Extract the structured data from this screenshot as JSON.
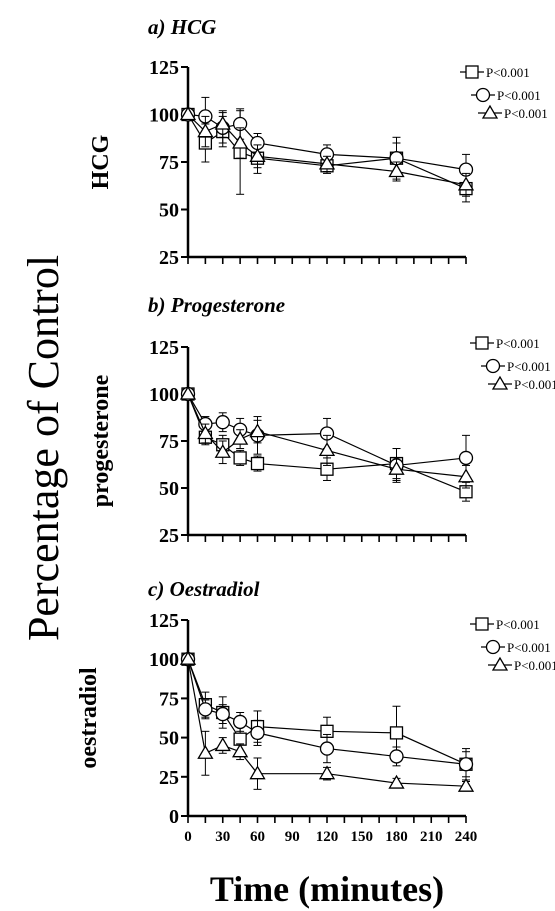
{
  "figure": {
    "shared_ylabel": "Percentage of Control",
    "shared_xlabel": "Time (minutes)"
  },
  "chart_data": [
    {
      "type": "line",
      "title": "a) HCG",
      "ylabel": "HCG",
      "xlabel": "",
      "ylim": [
        25,
        125
      ],
      "xlim": [
        0,
        240
      ],
      "yticks": [
        25,
        50,
        75,
        100,
        125
      ],
      "xticks": [
        0,
        15,
        30,
        45,
        60,
        75,
        90,
        105,
        120,
        135,
        150,
        165,
        180,
        195,
        210,
        225,
        240
      ],
      "show_xtick_labels": false,
      "legend_position": "top-right",
      "grid": false,
      "series": [
        {
          "name": "P<0.001",
          "marker": "square",
          "x": [
            0,
            15,
            30,
            45,
            60,
            120,
            180,
            240
          ],
          "y": [
            100,
            85,
            91,
            80,
            77,
            73,
            77,
            61
          ],
          "err": [
            0,
            10,
            8,
            22,
            8,
            4,
            11,
            7
          ]
        },
        {
          "name": "P<0.001",
          "marker": "circle",
          "x": [
            0,
            15,
            30,
            45,
            60,
            120,
            180,
            240
          ],
          "y": [
            100,
            99,
            93,
            95,
            85,
            79,
            77,
            71
          ],
          "err": [
            0,
            10,
            8,
            8,
            5,
            5,
            8,
            8
          ]
        },
        {
          "name": "P<0.001",
          "marker": "triangle",
          "x": [
            0,
            15,
            30,
            45,
            60,
            120,
            180,
            240
          ],
          "y": [
            100,
            91,
            95,
            85,
            78,
            74,
            70,
            63
          ],
          "err": [
            0,
            8,
            7,
            8,
            6,
            4,
            5,
            6
          ]
        }
      ]
    },
    {
      "type": "line",
      "title": "b) Progesterone",
      "ylabel": "progesterone",
      "xlabel": "",
      "ylim": [
        25,
        125
      ],
      "xlim": [
        0,
        240
      ],
      "yticks": [
        25,
        50,
        75,
        100,
        125
      ],
      "xticks": [
        0,
        15,
        30,
        45,
        60,
        75,
        90,
        105,
        120,
        135,
        150,
        165,
        180,
        195,
        210,
        225,
        240
      ],
      "show_xtick_labels": false,
      "legend_position": "top-right",
      "grid": false,
      "series": [
        {
          "name": "P<0.001",
          "marker": "square",
          "x": [
            0,
            15,
            30,
            45,
            60,
            120,
            180,
            240
          ],
          "y": [
            100,
            77,
            73,
            66,
            63,
            60,
            63,
            48
          ],
          "err": [
            0,
            4,
            5,
            4,
            4,
            6,
            8,
            5
          ]
        },
        {
          "name": "P<0.001",
          "marker": "circle",
          "x": [
            0,
            15,
            30,
            45,
            60,
            120,
            180,
            240
          ],
          "y": [
            100,
            84,
            85,
            81,
            78,
            79,
            62,
            66
          ],
          "err": [
            0,
            4,
            5,
            6,
            10,
            8,
            9,
            12
          ]
        },
        {
          "name": "P<0.001",
          "marker": "triangle",
          "x": [
            0,
            15,
            30,
            45,
            60,
            120,
            180,
            240
          ],
          "y": [
            100,
            79,
            69,
            76,
            80,
            70,
            60,
            56
          ],
          "err": [
            0,
            5,
            6,
            5,
            6,
            8,
            6,
            6
          ]
        }
      ]
    },
    {
      "type": "line",
      "title": "c) Oestradiol",
      "ylabel": "oestradiol",
      "xlabel": "",
      "ylim": [
        0,
        125
      ],
      "xlim": [
        0,
        240
      ],
      "yticks": [
        0,
        25,
        50,
        75,
        100,
        125
      ],
      "xticks": [
        0,
        15,
        30,
        45,
        60,
        75,
        90,
        105,
        120,
        135,
        150,
        165,
        180,
        195,
        210,
        225,
        240
      ],
      "xtick_labels": [
        "0",
        "30",
        "60",
        "90",
        "120",
        "150",
        "180",
        "210",
        "240"
      ],
      "show_xtick_labels": true,
      "legend_position": "top-right",
      "grid": false,
      "series": [
        {
          "name": "P<0.001",
          "marker": "square",
          "x": [
            0,
            15,
            30,
            45,
            60,
            120,
            180,
            240
          ],
          "y": [
            100,
            71,
            66,
            49,
            57,
            54,
            53,
            33
          ],
          "err": [
            0,
            8,
            10,
            10,
            10,
            9,
            17,
            10
          ]
        },
        {
          "name": "P<0.001",
          "marker": "circle",
          "x": [
            0,
            15,
            30,
            45,
            60,
            120,
            180,
            240
          ],
          "y": [
            100,
            68,
            65,
            60,
            53,
            43,
            38,
            33
          ],
          "err": [
            0,
            6,
            6,
            6,
            8,
            9,
            6,
            8
          ]
        },
        {
          "name": "P<0.001",
          "marker": "triangle",
          "x": [
            0,
            15,
            30,
            45,
            60,
            120,
            180,
            240
          ],
          "y": [
            100,
            40,
            45,
            41,
            27,
            27,
            21,
            19
          ],
          "err": [
            0,
            14,
            5,
            5,
            10,
            4,
            3,
            3
          ]
        }
      ]
    }
  ]
}
